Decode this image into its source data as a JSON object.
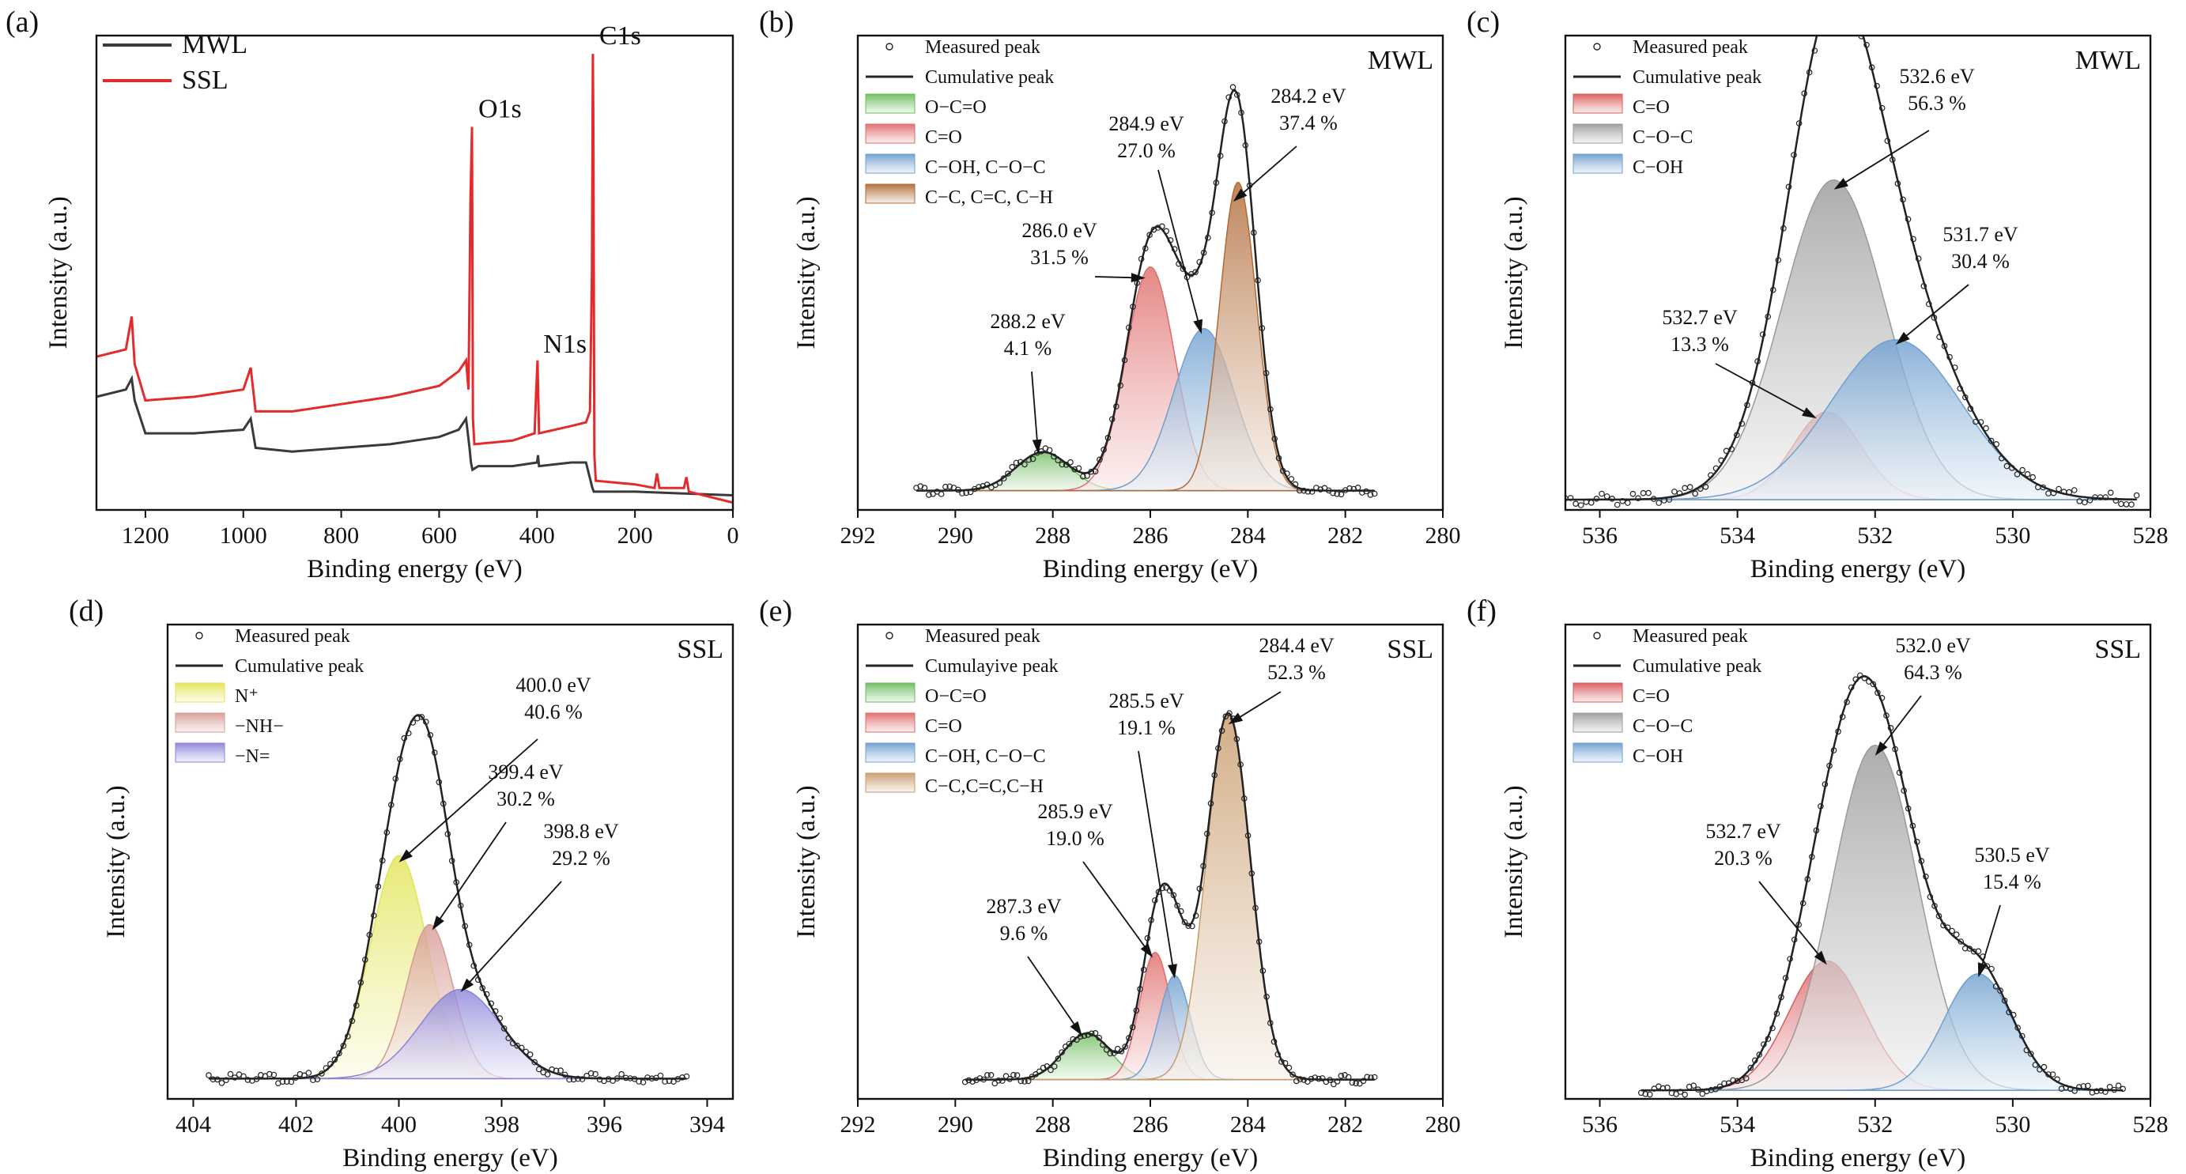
{
  "colors": {
    "mwl_line": "#3a3a3a",
    "ssl_line": "#e32b2b",
    "green": "#6cbb5c",
    "red": "#e06a6a",
    "blue": "#6f9fd0",
    "brown": "#b06a35",
    "gray": "#9a9a9a",
    "yellow": "#e3e454",
    "pink": "#d69a92",
    "purple": "#8a83d8",
    "tan": "#c89a6a"
  },
  "chart_data": [
    {
      "id": "a",
      "panel_label": "(a)",
      "type": "line",
      "title": "",
      "xlabel": "Binding energy (eV)",
      "ylabel": "Intensity (a.u.)",
      "xlim": [
        1300,
        0
      ],
      "x_reversed": true,
      "xticks": [
        1200,
        1000,
        800,
        600,
        400,
        200,
        0
      ],
      "legend": [
        "MWL",
        "SSL"
      ],
      "series": [
        {
          "name": "MWL",
          "color": "#3a3a3a",
          "points": [
            [
              1300,
              0.26
            ],
            [
              1240,
              0.28
            ],
            [
              1228,
              0.31
            ],
            [
              1222,
              0.25
            ],
            [
              1200,
              0.16
            ],
            [
              1100,
              0.16
            ],
            [
              1000,
              0.17
            ],
            [
              985,
              0.2
            ],
            [
              975,
              0.12
            ],
            [
              900,
              0.11
            ],
            [
              800,
              0.12
            ],
            [
              700,
              0.13
            ],
            [
              600,
              0.15
            ],
            [
              560,
              0.17
            ],
            [
              545,
              0.2
            ],
            [
              538,
              0.12
            ],
            [
              535,
              0.08
            ],
            [
              532,
              0.06
            ],
            [
              520,
              0.07
            ],
            [
              450,
              0.07
            ],
            [
              400,
              0.08
            ],
            [
              398,
              0.1
            ],
            [
              396,
              0.07
            ],
            [
              330,
              0.08
            ],
            [
              300,
              0.08
            ],
            [
              287,
              0.01
            ],
            [
              284,
              0.0
            ],
            [
              280,
              0.0
            ],
            [
              200,
              0.0
            ],
            [
              100,
              -0.005
            ],
            [
              0,
              -0.01
            ]
          ]
        },
        {
          "name": "SSL",
          "color": "#e32b2b",
          "points": [
            [
              1300,
              0.37
            ],
            [
              1240,
              0.39
            ],
            [
              1228,
              0.48
            ],
            [
              1222,
              0.35
            ],
            [
              1200,
              0.25
            ],
            [
              1100,
              0.26
            ],
            [
              1000,
              0.28
            ],
            [
              985,
              0.34
            ],
            [
              975,
              0.22
            ],
            [
              900,
              0.22
            ],
            [
              800,
              0.24
            ],
            [
              700,
              0.26
            ],
            [
              600,
              0.29
            ],
            [
              560,
              0.33
            ],
            [
              545,
              0.36
            ],
            [
              540,
              0.28
            ],
            [
              536,
              0.8
            ],
            [
              533,
              1.0
            ],
            [
              531,
              0.2
            ],
            [
              528,
              0.13
            ],
            [
              450,
              0.14
            ],
            [
              405,
              0.16
            ],
            [
              402,
              0.27
            ],
            [
              399,
              0.36
            ],
            [
              396,
              0.16
            ],
            [
              330,
              0.18
            ],
            [
              300,
              0.19
            ],
            [
              292,
              0.22
            ],
            [
              288,
              0.6
            ],
            [
              286,
              1.2
            ],
            [
              285,
              1.0
            ],
            [
              283,
              0.1
            ],
            [
              280,
              0.03
            ],
            [
              200,
              0.02
            ],
            [
              160,
              0.01
            ],
            [
              155,
              0.05
            ],
            [
              150,
              0.01
            ],
            [
              100,
              0.01
            ],
            [
              95,
              0.04
            ],
            [
              90,
              0.0
            ],
            [
              0,
              -0.03
            ]
          ]
        }
      ],
      "annotations": [
        "C1s",
        "O1s",
        "N1s"
      ]
    },
    {
      "id": "b",
      "panel_label": "(b)",
      "type": "area",
      "sample": "MWL",
      "xlabel": "Binding energy (eV)",
      "ylabel": "Intensity (a.u.)",
      "xlim": [
        292,
        280
      ],
      "x_reversed": true,
      "xticks": [
        292,
        290,
        288,
        286,
        284,
        282,
        280
      ],
      "data_x_range": [
        290.8,
        281.4
      ],
      "legend": [
        "Measured peak",
        "Cumulative peak",
        "O−C=O",
        "C=O",
        "C−OH, C−O−C",
        "C−C, C=C, C−H"
      ],
      "series": [
        {
          "name": "O−C=O",
          "center": 288.2,
          "height": 0.1,
          "sigma": 0.55,
          "color": "#6cbb5c"
        },
        {
          "name": "C=O",
          "center": 286.0,
          "height": 0.58,
          "sigma": 0.5,
          "color": "#e06a6a"
        },
        {
          "name": "C−OH, C−O−C",
          "center": 284.9,
          "height": 0.42,
          "sigma": 0.62,
          "color": "#6f9fd0"
        },
        {
          "name": "C−C, C=C, C−H",
          "center": 284.2,
          "height": 0.8,
          "sigma": 0.38,
          "color": "#b06a35"
        }
      ],
      "annotations": [
        {
          "lines": [
            "288.2 eV",
            "4.1 %"
          ]
        },
        {
          "lines": [
            "286.0 eV",
            "31.5 %"
          ]
        },
        {
          "lines": [
            "284.9 eV",
            "27.0 %"
          ]
        },
        {
          "lines": [
            "284.2 eV",
            "37.4 %"
          ]
        }
      ]
    },
    {
      "id": "c",
      "panel_label": "(c)",
      "type": "area",
      "sample": "MWL",
      "xlabel": "Binding energy (eV)",
      "ylabel": "Intensity (a.u.)",
      "xlim": [
        536.5,
        528
      ],
      "x_reversed": true,
      "xticks": [
        536,
        534,
        532,
        530,
        528
      ],
      "data_x_range": [
        536.5,
        528.2
      ],
      "legend": [
        "Measured peak",
        "Cumulative peak",
        "C=O",
        "C−O−C",
        "C−OH"
      ],
      "series": [
        {
          "name": "C=O",
          "center": 532.7,
          "height": 0.17,
          "sigma": 0.5,
          "color": "#d95b5b"
        },
        {
          "name": "C−O−C",
          "center": 532.6,
          "height": 0.62,
          "sigma": 0.75,
          "color": "#9a9a9a"
        },
        {
          "name": "C−OH",
          "center": 531.7,
          "height": 0.31,
          "sigma": 0.95,
          "color": "#6f9fd0"
        }
      ],
      "annotations": [
        {
          "lines": [
            "532.6 eV",
            "56.3 %"
          ]
        },
        {
          "lines": [
            "531.7 eV",
            "30.4 %"
          ]
        },
        {
          "lines": [
            "532.7 eV",
            "13.3 %"
          ]
        }
      ]
    },
    {
      "id": "d",
      "panel_label": "(d)",
      "type": "area",
      "sample": "SSL",
      "xlabel": "Binding energy (eV)",
      "ylabel": "Intensity (a.u.)",
      "xlim": [
        404.5,
        393.5
      ],
      "x_reversed": true,
      "xticks": [
        404,
        402,
        400,
        398,
        396,
        394
      ],
      "data_x_range": [
        403.7,
        394.4
      ],
      "legend": [
        "Measured peak",
        "Cumulative peak",
        "N⁺",
        "−NH−",
        "−N="
      ],
      "series": [
        {
          "name": "N⁺",
          "center": 400.0,
          "height": 0.55,
          "sigma": 0.55,
          "color": "#e3e454"
        },
        {
          "name": "−NH−",
          "center": 399.4,
          "height": 0.38,
          "sigma": 0.45,
          "color": "#d69a92"
        },
        {
          "name": "−N=",
          "center": 398.8,
          "height": 0.22,
          "sigma": 0.78,
          "color": "#8a83d8"
        }
      ],
      "annotations": [
        {
          "lines": [
            "400.0 eV",
            "40.6 %"
          ]
        },
        {
          "lines": [
            "399.4 eV",
            "30.2 %"
          ]
        },
        {
          "lines": [
            "398.8 eV",
            "29.2 %"
          ]
        }
      ]
    },
    {
      "id": "e",
      "panel_label": "(e)",
      "type": "area",
      "sample": "SSL",
      "xlabel": "Binding energy (eV)",
      "ylabel": "Intensity (a.u.)",
      "xlim": [
        292,
        280
      ],
      "x_reversed": true,
      "xticks": [
        292,
        290,
        288,
        286,
        284,
        282,
        280
      ],
      "data_x_range": [
        289.8,
        281.4
      ],
      "legend": [
        "Measured peak",
        "Cumulayive peak",
        "O−C=O",
        "C=O",
        "C−OH, C−O−C",
        "C−C,C=C,C−H"
      ],
      "series": [
        {
          "name": "O−C=O",
          "center": 287.3,
          "height": 0.12,
          "sigma": 0.48,
          "color": "#6cbb5c"
        },
        {
          "name": "C=O",
          "center": 285.9,
          "height": 0.33,
          "sigma": 0.32,
          "color": "#e06a6a"
        },
        {
          "name": "C−OH, C−O−C",
          "center": 285.5,
          "height": 0.27,
          "sigma": 0.32,
          "color": "#6f9fd0"
        },
        {
          "name": "C−C,C=C,C−H",
          "center": 284.4,
          "height": 0.95,
          "sigma": 0.45,
          "color": "#c89a6a"
        }
      ],
      "annotations": [
        {
          "lines": [
            "284.4 eV",
            "52.3 %"
          ]
        },
        {
          "lines": [
            "285.5 eV",
            "19.1 %"
          ]
        },
        {
          "lines": [
            "285.9 eV",
            "19.0 %"
          ]
        },
        {
          "lines": [
            "287.3 eV",
            "9.6 %"
          ]
        }
      ]
    },
    {
      "id": "f",
      "panel_label": "(f)",
      "type": "area",
      "sample": "SSL",
      "xlabel": "Binding energy (eV)",
      "ylabel": "Intensity (a.u.)",
      "xlim": [
        536.5,
        528
      ],
      "x_reversed": true,
      "xticks": [
        536,
        534,
        532,
        530,
        528
      ],
      "data_x_range": [
        535.4,
        528.4
      ],
      "legend": [
        "Measured peak",
        "Cumulative peak",
        "C=O",
        "C−O−C",
        "C−OH"
      ],
      "series": [
        {
          "name": "C=O",
          "center": 532.7,
          "height": 0.3,
          "sigma": 0.55,
          "color": "#d95b5b"
        },
        {
          "name": "C−O−C",
          "center": 532.0,
          "height": 0.8,
          "sigma": 0.62,
          "color": "#9a9a9a"
        },
        {
          "name": "C−OH",
          "center": 530.5,
          "height": 0.27,
          "sigma": 0.5,
          "color": "#6f9fd0"
        }
      ],
      "annotations": [
        {
          "lines": [
            "532.0 eV",
            "64.3 %"
          ]
        },
        {
          "lines": [
            "532.7 eV",
            "20.3 %"
          ]
        },
        {
          "lines": [
            "530.5 eV",
            "15.4 %"
          ]
        }
      ]
    }
  ]
}
